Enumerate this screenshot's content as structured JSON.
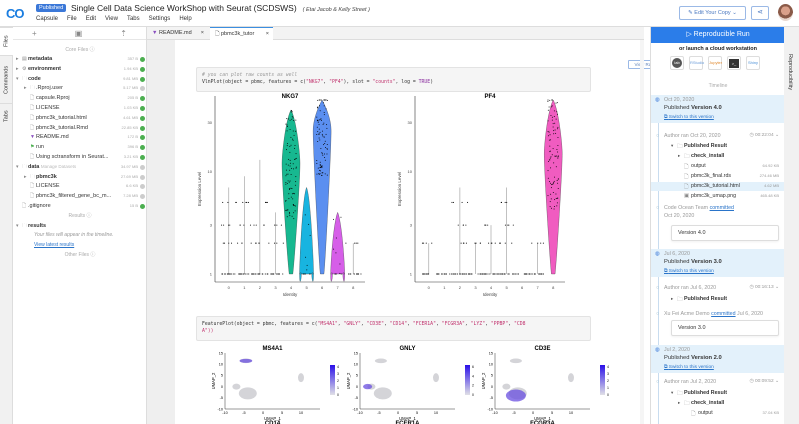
{
  "header": {
    "logo": "CO",
    "badge": "Published",
    "title": "Single Cell Data Science WorkShop with Seurat (SCDSWS)",
    "authors": "( Etai Jacob & Kelly Street )",
    "menu": [
      "Capsule",
      "File",
      "Edit",
      "View",
      "Tabs",
      "Settings",
      "Help"
    ],
    "edit_copy": "✎ Edit Your Copy ⌄",
    "share_icon": "share-icon"
  },
  "left_tabs": [
    "Files",
    "Commands",
    "Tabs"
  ],
  "files": {
    "core_label": "Core Files ⓘ",
    "results_label": "Results ⓘ",
    "other_label": "Other Files ⓘ",
    "rows": [
      {
        "name": "metadata",
        "icon": "▤",
        "level": 0,
        "arrow": "▸",
        "bold": true,
        "size": "357 B",
        "status": "green"
      },
      {
        "name": "environment",
        "icon": "⚙",
        "level": 0,
        "arrow": "▸",
        "bold": true,
        "size": "1.94 KB",
        "status": "green"
      },
      {
        "name": "code",
        "icon": "🗀",
        "level": 0,
        "arrow": "▾",
        "bold": true,
        "size": "9.81 MB",
        "status": "green"
      },
      {
        "name": ".Rproj.user",
        "icon": "🗀",
        "level": 1,
        "arrow": "▸",
        "size": "5.17 MB",
        "status": "grey"
      },
      {
        "name": "capsule.Rproj",
        "icon": "🗋",
        "level": 1,
        "size": "205 B",
        "status": "green"
      },
      {
        "name": "LICENSE",
        "icon": "🗋",
        "level": 1,
        "size": "1.03 KB",
        "status": "green"
      },
      {
        "name": "pbmc3k_tutorial.html",
        "icon": "🗋",
        "level": 1,
        "size": "4.61 MB",
        "status": "green"
      },
      {
        "name": "pbmc3k_tutorial.Rmd",
        "icon": "🗋",
        "level": 1,
        "size": "22.85 KB",
        "status": "green"
      },
      {
        "name": "README.md",
        "icon": "▼",
        "level": 1,
        "size": "172 B",
        "status": "green"
      },
      {
        "name": "run",
        "icon": "⚑",
        "level": 1,
        "size": "396 B",
        "status": "green"
      },
      {
        "name": "Using sctransform in Seurat...",
        "icon": "🗋",
        "level": 1,
        "size": "3.21 KB",
        "status": "green"
      },
      {
        "name": "data",
        "extra": "Manage Datasets",
        "icon": "🗀",
        "level": 0,
        "arrow": "▾",
        "bold": true,
        "size": "34.97 MB",
        "status": "grey"
      },
      {
        "name": "pbmc3k",
        "icon": "🗀",
        "level": 1,
        "arrow": "▸",
        "bold": true,
        "size": "27.69 MB",
        "status": "grey"
      },
      {
        "name": "LICENSE",
        "icon": "🗋",
        "level": 1,
        "size": "6.6 KB",
        "status": "grey"
      },
      {
        "name": "pbmc3k_filtered_gene_bc_m...",
        "icon": "🗋",
        "level": 1,
        "size": "7.28 MB",
        "status": "grey"
      },
      {
        "name": ".gitignore",
        "icon": "🗋",
        "level": 0,
        "size": "15 B",
        "status": "green"
      }
    ],
    "results": {
      "name": "results",
      "hint": "Your files will appear in the timeline.",
      "link": "View latest results"
    }
  },
  "editor": {
    "tabs": [
      {
        "label": "README.md"
      },
      {
        "label": "pbmc3k_tutor"
      }
    ],
    "view_raw": "View Raw",
    "code1_comment": "# you can plot raw counts as well",
    "code1": [
      "VlnPlot(object = pbmc, features = c(",
      "\"NKG7\"",
      ", ",
      "\"PF4\"",
      "), slot = ",
      "\"counts\"",
      ", log = ",
      "TRUE",
      ")"
    ],
    "code2": "FeaturePlot(object = pbmc, features = c(",
    "code2_strings": [
      "\"MS4A1\"",
      "\"GNLY\"",
      "\"CD3E\"",
      "\"CD14\"",
      "\"FCER1A\"",
      "\"FCGR3A\"",
      "\"LYZ\"",
      "\"PPBP\"",
      "\"CD8"
    ],
    "code2_end": "A\"))"
  },
  "chart_data": [
    {
      "type": "violin",
      "title": "NKG7",
      "xlabel": "Identity",
      "ylabel": "Expression Level",
      "yscale": "log",
      "yticks": [
        1,
        3,
        10,
        30
      ],
      "categories": [
        "0",
        "1",
        "2",
        "3",
        "4",
        "5",
        "6",
        "7",
        "8"
      ],
      "max": [
        7,
        9,
        13,
        4,
        40,
        7,
        50,
        4,
        2
      ],
      "median": [
        1,
        1,
        1,
        1,
        12,
        1,
        25,
        1,
        1
      ],
      "colors": {
        "4": "#17b890",
        "5": "#18b4e0",
        "6": "#5b8ff0",
        "7": "#d65ee8"
      }
    },
    {
      "type": "violin",
      "title": "PF4",
      "xlabel": "Identity",
      "ylabel": "Expression Level",
      "yscale": "log",
      "yticks": [
        1,
        3,
        10,
        30
      ],
      "categories": [
        "0",
        "1",
        "2",
        "3",
        "4",
        "5",
        "6",
        "7",
        "8"
      ],
      "max": [
        2,
        1,
        7,
        2,
        3,
        7,
        1,
        2,
        50
      ],
      "median": [
        1,
        1,
        1,
        1,
        1,
        1,
        1,
        1,
        15
      ],
      "colors": {
        "8": "#f05cc0"
      }
    },
    {
      "type": "scatter",
      "title": "MS4A1",
      "xlabel": "UMAP_1",
      "ylabel": "UMAP_2",
      "xticks": [
        -10,
        -5,
        0,
        5,
        10
      ],
      "yticks": [
        -10,
        -5,
        0,
        5,
        10,
        15
      ],
      "colorbar": [
        0,
        1,
        2,
        3,
        4
      ]
    },
    {
      "type": "scatter",
      "title": "GNLY",
      "xlabel": "UMAP_1",
      "ylabel": "UMAP_2",
      "xticks": [
        -10,
        -5,
        0,
        5,
        10
      ],
      "yticks": [
        -10,
        -5,
        0,
        5,
        10,
        15
      ],
      "colorbar": [
        0,
        2,
        4,
        6
      ]
    },
    {
      "type": "scatter",
      "title": "CD3E",
      "xlabel": "UMAP_1",
      "ylabel": "UMAP_2",
      "xticks": [
        -10,
        -5,
        0,
        5,
        10
      ],
      "yticks": [
        -10,
        -5,
        0,
        5,
        10,
        15
      ],
      "colorbar": [
        0,
        1,
        2,
        3,
        4
      ]
    }
  ],
  "next_titles": [
    "CD14",
    "FCER1A",
    "FCGR3A"
  ],
  "right": {
    "run_button": "▷ Reproducible Run",
    "launch": "or launch a cloud workstation",
    "workstations": [
      "lab",
      "RStudio",
      "Jupyter",
      "Terminal",
      "Shiny"
    ],
    "timeline_label": "Timeline",
    "tab": "Reproducibility",
    "switch": "Switch to this version",
    "v4": {
      "date": "Oct 20, 2020",
      "title_a": "Published ",
      "title_b": "Version 4.0",
      "ran": "Author ran Oct 20, 2020",
      "dur": "◷ 00:22:04 ⌄",
      "result": "Published Result",
      "check": "check_install",
      "files": [
        {
          "n": "output",
          "s": "64.92 KB"
        },
        {
          "n": "pbmc3k_final.rds",
          "s": "274.46 MB"
        },
        {
          "n": "pbmc3k_tutorial.html",
          "s": "4.62 MB"
        },
        {
          "n": "pbmc3k_umap.png",
          "s": "465.48 KB"
        }
      ],
      "commit_who": "Code Ocean Team",
      "commit_word": "committed",
      "commit_date": "Oct 20, 2020",
      "box": "Version 4.0"
    },
    "v3": {
      "date": "Jul 6, 2020",
      "title_a": "Published ",
      "title_b": "Version 3.0",
      "ran": "Author ran Jul 6, 2020",
      "dur": "◷ 00:16:13 ⌄",
      "result": "Published Result",
      "commit_who": "Xu Fei Acme Demo",
      "commit_word": "committed",
      "commit_date": "Jul 6, 2020",
      "box": "Version 3.0"
    },
    "v2": {
      "date": "Jul 2, 2020",
      "title_a": "Published ",
      "title_b": "Version 2.0",
      "ran": "Author ran Jul 2, 2020",
      "dur": "◷ 00:09:52 ⌄",
      "result": "Published Result",
      "check": "check_install",
      "out": "output",
      "out_size": "37.04 KB"
    }
  }
}
